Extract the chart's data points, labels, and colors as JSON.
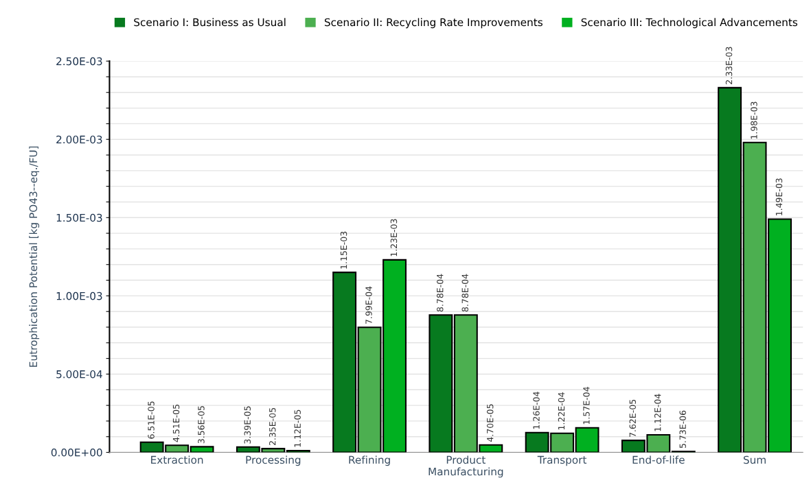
{
  "chart_data": {
    "type": "bar",
    "ylabel": "Eutrophication Potential [kg PO43--eq./FU]",
    "categories": [
      "Extraction",
      "Processing",
      "Refining",
      "Product\nManufacturing",
      "Transport",
      "End-of-life",
      "Sum"
    ],
    "series": [
      {
        "name": "Scenario I: Business as Usual",
        "color": "#077a1f",
        "values": [
          6.51e-05,
          3.39e-05,
          0.00115,
          0.000878,
          0.000126,
          7.62e-05,
          0.00233
        ],
        "value_labels": [
          "6.51E-05",
          "3.39E-05",
          "1.15E-03",
          "8.78E-04",
          "1.26E-04",
          "7.62E-05",
          "2.33E-03"
        ]
      },
      {
        "name": "Scenario II: Recycling Rate Improvements",
        "color": "#4caf50",
        "values": [
          4.51e-05,
          2.35e-05,
          0.000799,
          0.000878,
          0.000122,
          0.000112,
          0.00198
        ],
        "value_labels": [
          "4.51E-05",
          "2.35E-05",
          "7.99E-04",
          "8.78E-04",
          "1.22E-04",
          "1.12E-04",
          "1.98E-03"
        ]
      },
      {
        "name": "Scenario III: Technological Advancements",
        "color": "#00b020",
        "values": [
          3.56e-05,
          1.12e-05,
          0.00123,
          4.7e-05,
          0.000157,
          5.73e-06,
          0.00149
        ],
        "value_labels": [
          "3.56E-05",
          "1.12E-05",
          "1.23E-03",
          "4.70E-05",
          "1.57E-04",
          "5.73E-06",
          "1.49E-03"
        ]
      }
    ],
    "ylim": [
      0,
      0.0025
    ],
    "yticks": [
      {
        "value": 0,
        "label": "0.00E+00"
      },
      {
        "value": 0.0001,
        "label": null
      },
      {
        "value": 0.0002,
        "label": null
      },
      {
        "value": 0.0003,
        "label": null
      },
      {
        "value": 0.0004,
        "label": null
      },
      {
        "value": 0.0005,
        "label": "5.00E-04"
      },
      {
        "value": 0.0006,
        "label": null
      },
      {
        "value": 0.0007,
        "label": null
      },
      {
        "value": 0.0008,
        "label": null
      },
      {
        "value": 0.0009,
        "label": null
      },
      {
        "value": 0.001,
        "label": "1.00E-03"
      },
      {
        "value": 0.0011,
        "label": null
      },
      {
        "value": 0.0012,
        "label": null
      },
      {
        "value": 0.0013,
        "label": null
      },
      {
        "value": 0.0014,
        "label": null
      },
      {
        "value": 0.0015,
        "label": "1.50E-03"
      },
      {
        "value": 0.0016,
        "label": null
      },
      {
        "value": 0.0017,
        "label": null
      },
      {
        "value": 0.0018,
        "label": null
      },
      {
        "value": 0.0019,
        "label": null
      },
      {
        "value": 0.002,
        "label": "2.00E-03"
      },
      {
        "value": 0.0021,
        "label": null
      },
      {
        "value": 0.0022,
        "label": null
      },
      {
        "value": 0.0023,
        "label": null
      },
      {
        "value": 0.0024,
        "label": null
      },
      {
        "value": 0.0025,
        "label": "2.50E-03"
      }
    ],
    "grid": "y",
    "legend": "top"
  }
}
